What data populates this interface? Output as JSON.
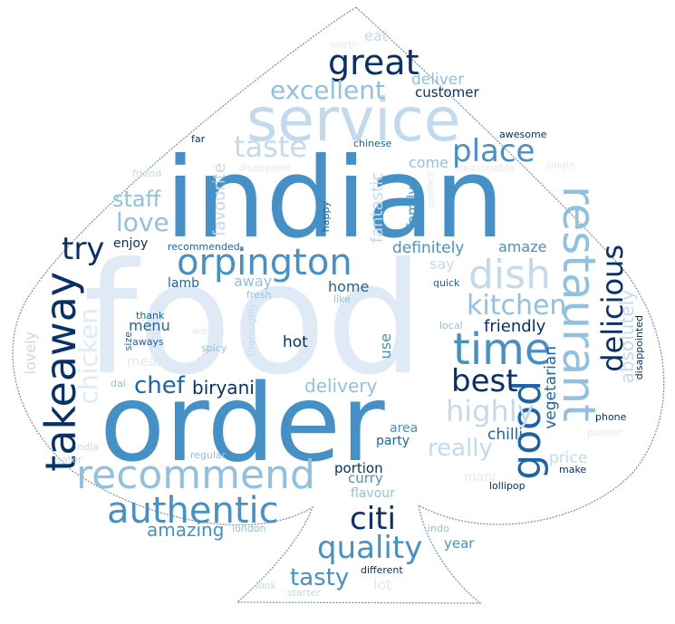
{
  "palette": {
    "c1": "#08306b",
    "c2": "#1c64aa",
    "c3": "#4591c7",
    "c4": "#92c1df",
    "c5": "#c3daee",
    "c6": "#dfeaf6",
    "outline": "#6f8db3"
  },
  "shape": "spade",
  "words": [
    {
      "text": "indian",
      "color": "c3"
    },
    {
      "text": "food",
      "color": "c6"
    },
    {
      "text": "order",
      "color": "c3"
    },
    {
      "text": "service",
      "color": "c5"
    },
    {
      "text": "takeaway",
      "color": "c1"
    },
    {
      "text": "recommend",
      "color": "c4"
    },
    {
      "text": "restaurant",
      "color": "c4"
    },
    {
      "text": "orpington",
      "color": "c3"
    },
    {
      "text": "dish",
      "color": "c5"
    },
    {
      "text": "time",
      "color": "c3"
    },
    {
      "text": "good",
      "color": "c2"
    },
    {
      "text": "great",
      "color": "c1"
    },
    {
      "text": "authentic",
      "color": "c3"
    },
    {
      "text": "delicious",
      "color": "c1"
    },
    {
      "text": "quality",
      "color": "c3"
    },
    {
      "text": "place",
      "color": "c3"
    },
    {
      "text": "taste",
      "color": "c5"
    },
    {
      "text": "excellent",
      "color": "c4"
    },
    {
      "text": "chicken",
      "color": "c6"
    },
    {
      "text": "try",
      "color": "c1"
    },
    {
      "text": "best",
      "color": "c1"
    },
    {
      "text": "kitchen",
      "color": "c4"
    },
    {
      "text": "citi",
      "color": "c1"
    },
    {
      "text": "highly",
      "color": "c5"
    },
    {
      "text": "love",
      "color": "c4"
    },
    {
      "text": "staff",
      "color": "c4"
    },
    {
      "text": "chef",
      "color": "c2"
    },
    {
      "text": "tasty",
      "color": "c3"
    },
    {
      "text": "biryani",
      "color": "c1"
    },
    {
      "text": "really",
      "color": "c5"
    },
    {
      "text": "absolutely",
      "color": "c5"
    },
    {
      "text": "amazing",
      "color": "c3"
    },
    {
      "text": "delivery",
      "color": "c4"
    },
    {
      "text": "favourite",
      "color": "c5"
    },
    {
      "text": "fantastic",
      "color": "c5"
    },
    {
      "text": "vegetarian",
      "color": "c2"
    },
    {
      "text": "friendly",
      "color": "c1"
    },
    {
      "text": "deliver",
      "color": "c4"
    },
    {
      "text": "customer",
      "color": "c1"
    },
    {
      "text": "awesome",
      "color": "c1"
    },
    {
      "text": "chinese",
      "color": "c2"
    },
    {
      "text": "reasonable",
      "color": "c6"
    },
    {
      "text": "disappoint",
      "color": "c6"
    },
    {
      "text": "family",
      "color": "c3"
    },
    {
      "text": "come",
      "color": "c4"
    },
    {
      "text": "perfect",
      "color": "c6"
    },
    {
      "text": "definitely",
      "color": "c3"
    },
    {
      "text": "amaze",
      "color": "c3"
    },
    {
      "text": "say",
      "color": "c5"
    },
    {
      "text": "quick",
      "color": "c2"
    },
    {
      "text": "enjoy",
      "color": "c1"
    },
    {
      "text": "recommended",
      "color": "c2"
    },
    {
      "text": "lamb",
      "color": "c2"
    },
    {
      "text": "away",
      "color": "c4"
    },
    {
      "text": "fresh",
      "color": "c4"
    },
    {
      "text": "home",
      "color": "c2"
    },
    {
      "text": "like",
      "color": "c4"
    },
    {
      "text": "menu",
      "color": "c2"
    },
    {
      "text": "thank",
      "color": "c2"
    },
    {
      "text": "aways",
      "color": "c2"
    },
    {
      "text": "hot",
      "color": "c1"
    },
    {
      "text": "use",
      "color": "c3"
    },
    {
      "text": "local",
      "color": "c4"
    },
    {
      "text": "size",
      "color": "c2"
    },
    {
      "text": "lovely",
      "color": "c5"
    },
    {
      "text": "way",
      "color": "c6"
    },
    {
      "text": "spicy",
      "color": "c4"
    },
    {
      "text": "thoroughly",
      "color": "c5"
    },
    {
      "text": "value",
      "color": "c6"
    },
    {
      "text": "meal",
      "color": "c6"
    },
    {
      "text": "dal",
      "color": "c4"
    },
    {
      "text": "disappointed",
      "color": "c1"
    },
    {
      "text": "area",
      "color": "c3"
    },
    {
      "text": "phone",
      "color": "c1"
    },
    {
      "text": "party",
      "color": "c2"
    },
    {
      "text": "chilli",
      "color": "c2"
    },
    {
      "text": "paneer",
      "color": "c6"
    },
    {
      "text": "portion",
      "color": "c1"
    },
    {
      "text": "price",
      "color": "c5"
    },
    {
      "text": "india",
      "color": "c5"
    },
    {
      "text": "curry",
      "color": "c3"
    },
    {
      "text": "mani",
      "color": "c6"
    },
    {
      "text": "make",
      "color": "c1"
    },
    {
      "text": "regular",
      "color": "c4"
    },
    {
      "text": "flavour",
      "color": "c4"
    },
    {
      "text": "lollipop",
      "color": "c1"
    },
    {
      "text": "cater",
      "color": "c5"
    },
    {
      "text": "london",
      "color": "c4"
    },
    {
      "text": "indo",
      "color": "c4"
    },
    {
      "text": "year",
      "color": "c3"
    },
    {
      "text": "different",
      "color": "c1"
    },
    {
      "text": "lot",
      "color": "c6"
    },
    {
      "text": "look",
      "color": "c5"
    },
    {
      "text": "starter",
      "color": "c5"
    },
    {
      "text": "eat",
      "color": "c5"
    },
    {
      "text": "worth",
      "color": "c6"
    },
    {
      "text": "far",
      "color": "c1"
    },
    {
      "text": "friend",
      "color": "c5"
    },
    {
      "text": "happy",
      "color": "c2"
    },
    {
      "text": "single",
      "color": "c6"
    }
  ]
}
